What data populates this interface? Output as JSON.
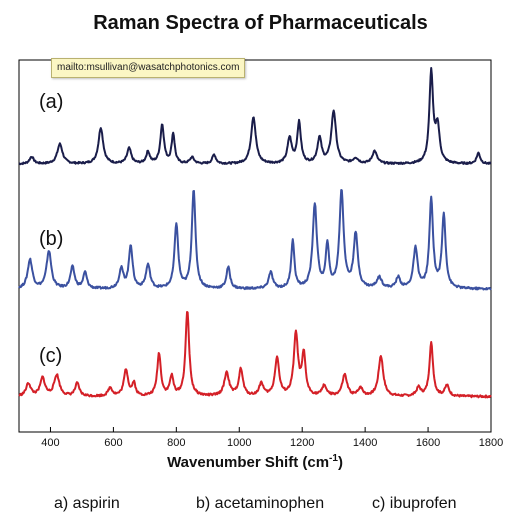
{
  "chart_data": {
    "type": "line",
    "title": "Raman Spectra of Pharmaceuticals",
    "xlabel": "Wavenumber Shift (cm",
    "xlabel_sup": "-1",
    "xlabel_suffix": ")",
    "ylabel": "",
    "xlim": [
      300,
      1800
    ],
    "xticks": [
      400,
      600,
      800,
      1000,
      1200,
      1400,
      1600,
      1800
    ],
    "grid": false,
    "series": [
      {
        "name": "(a)",
        "color": "#1a1d4a",
        "baseline": 0.12,
        "noise": 0.02,
        "peaks": [
          [
            340,
            0.08,
            8
          ],
          [
            430,
            0.22,
            10
          ],
          [
            560,
            0.4,
            9
          ],
          [
            650,
            0.17,
            8
          ],
          [
            710,
            0.13,
            7
          ],
          [
            755,
            0.43,
            7
          ],
          [
            790,
            0.33,
            6
          ],
          [
            850,
            0.07,
            8
          ],
          [
            920,
            0.1,
            7
          ],
          [
            1045,
            0.52,
            9
          ],
          [
            1160,
            0.28,
            8
          ],
          [
            1190,
            0.45,
            7
          ],
          [
            1255,
            0.28,
            8
          ],
          [
            1300,
            0.58,
            9
          ],
          [
            1370,
            0.06,
            10
          ],
          [
            1430,
            0.14,
            9
          ],
          [
            1610,
            1.0,
            7
          ],
          [
            1630,
            0.4,
            8
          ],
          [
            1760,
            0.12,
            7
          ]
        ]
      },
      {
        "name": "(b)",
        "color": "#3b51a0",
        "baseline": 0.1,
        "noise": 0.02,
        "peaks": [
          [
            335,
            0.27,
            9
          ],
          [
            395,
            0.35,
            9
          ],
          [
            470,
            0.2,
            8
          ],
          [
            510,
            0.15,
            7
          ],
          [
            625,
            0.18,
            8
          ],
          [
            655,
            0.4,
            7
          ],
          [
            710,
            0.22,
            8
          ],
          [
            800,
            0.6,
            7
          ],
          [
            855,
            0.92,
            7
          ],
          [
            965,
            0.2,
            7
          ],
          [
            1100,
            0.15,
            8
          ],
          [
            1170,
            0.45,
            6
          ],
          [
            1240,
            0.78,
            8
          ],
          [
            1280,
            0.4,
            6
          ],
          [
            1325,
            0.9,
            8
          ],
          [
            1370,
            0.5,
            8
          ],
          [
            1445,
            0.1,
            10
          ],
          [
            1505,
            0.1,
            8
          ],
          [
            1560,
            0.37,
            8
          ],
          [
            1610,
            0.82,
            7
          ],
          [
            1650,
            0.68,
            7
          ]
        ]
      },
      {
        "name": "(c)",
        "color": "#d42027",
        "baseline": 0.22,
        "noise": 0.02,
        "peaks": [
          [
            330,
            0.12,
            9
          ],
          [
            375,
            0.17,
            9
          ],
          [
            420,
            0.2,
            10
          ],
          [
            485,
            0.12,
            8
          ],
          [
            590,
            0.08,
            8
          ],
          [
            640,
            0.25,
            8
          ],
          [
            665,
            0.12,
            6
          ],
          [
            745,
            0.4,
            7
          ],
          [
            785,
            0.18,
            7
          ],
          [
            835,
            0.8,
            7
          ],
          [
            960,
            0.22,
            9
          ],
          [
            1005,
            0.25,
            8
          ],
          [
            1070,
            0.12,
            8
          ],
          [
            1120,
            0.36,
            8
          ],
          [
            1180,
            0.58,
            8
          ],
          [
            1205,
            0.38,
            7
          ],
          [
            1270,
            0.1,
            8
          ],
          [
            1335,
            0.2,
            9
          ],
          [
            1385,
            0.08,
            8
          ],
          [
            1450,
            0.38,
            9
          ],
          [
            1570,
            0.08,
            8
          ],
          [
            1610,
            0.5,
            7
          ],
          [
            1660,
            0.1,
            8
          ]
        ]
      }
    ]
  },
  "tooltip": {
    "text": "mailto:msullivan@wasatchphotonics.com"
  },
  "footnote": [
    {
      "label": "a) aspirin"
    },
    {
      "label": "b) acetaminophen"
    },
    {
      "label": "c) ibuprofen"
    }
  ]
}
